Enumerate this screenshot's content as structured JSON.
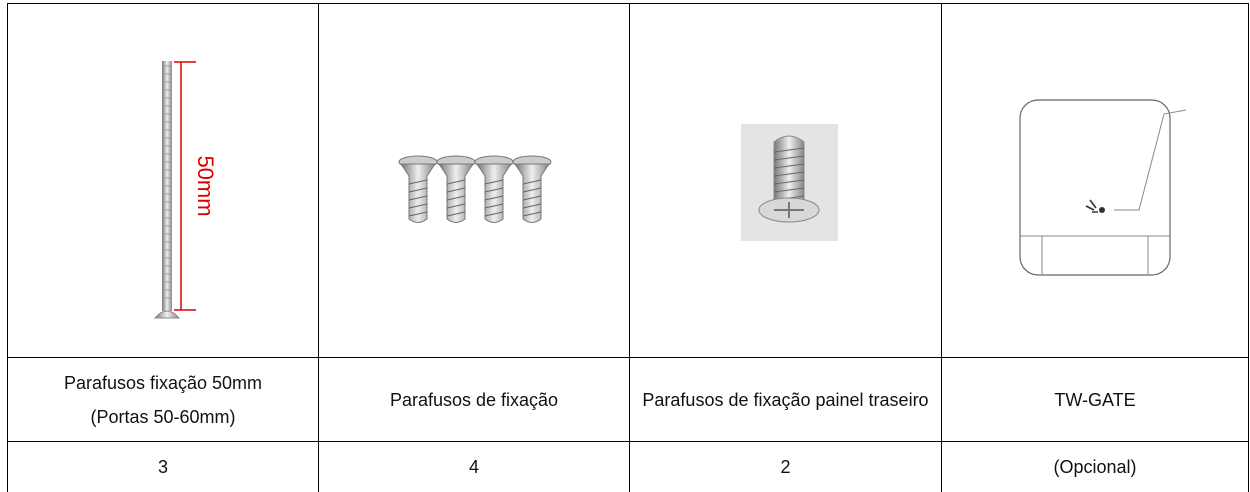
{
  "table": {
    "images": [
      {
        "label": "50mm"
      }
    ],
    "rows": [
      [
        "Parafusos fixação 50mm\n(Portas 50-60mm)",
        "Parafusos de fixação",
        "Parafusos de fixação painel traseiro",
        "TW-GATE"
      ],
      [
        3,
        4,
        2,
        "(Opcional)"
      ]
    ]
  }
}
